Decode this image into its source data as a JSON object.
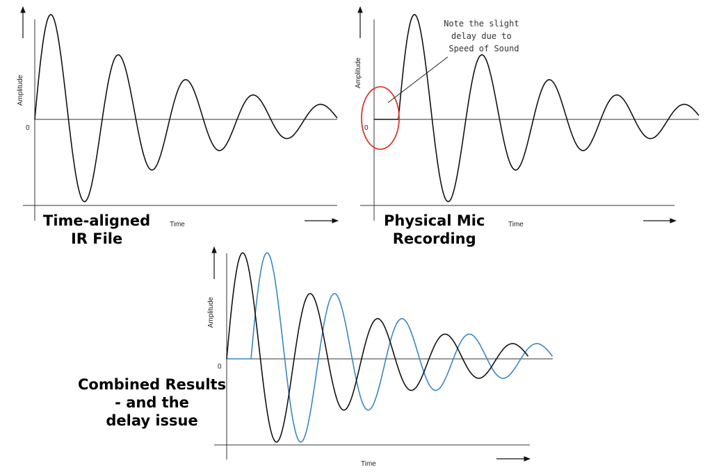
{
  "panels": {
    "ir": {
      "ylabel": "Amplitude",
      "xlabel": "Time",
      "zero": "0",
      "caption": [
        "Time-aligned",
        "IR File"
      ]
    },
    "mic": {
      "ylabel": "Amplitude",
      "xlabel": "Time",
      "zero": "0",
      "caption": [
        "Physical Mic",
        "Recording"
      ],
      "annotation": [
        "Note the slight",
        "delay due to",
        "Speed of Sound"
      ]
    },
    "combined": {
      "ylabel": "Amplitude",
      "xlabel": "Time",
      "zero": "0",
      "caption": [
        "Combined Results",
        "- and the",
        "delay issue"
      ]
    }
  },
  "colors": {
    "ir_wave": "#111111",
    "mic_wave": "#3a86c0",
    "highlight": "#d9382c",
    "axis": "#333333"
  }
}
